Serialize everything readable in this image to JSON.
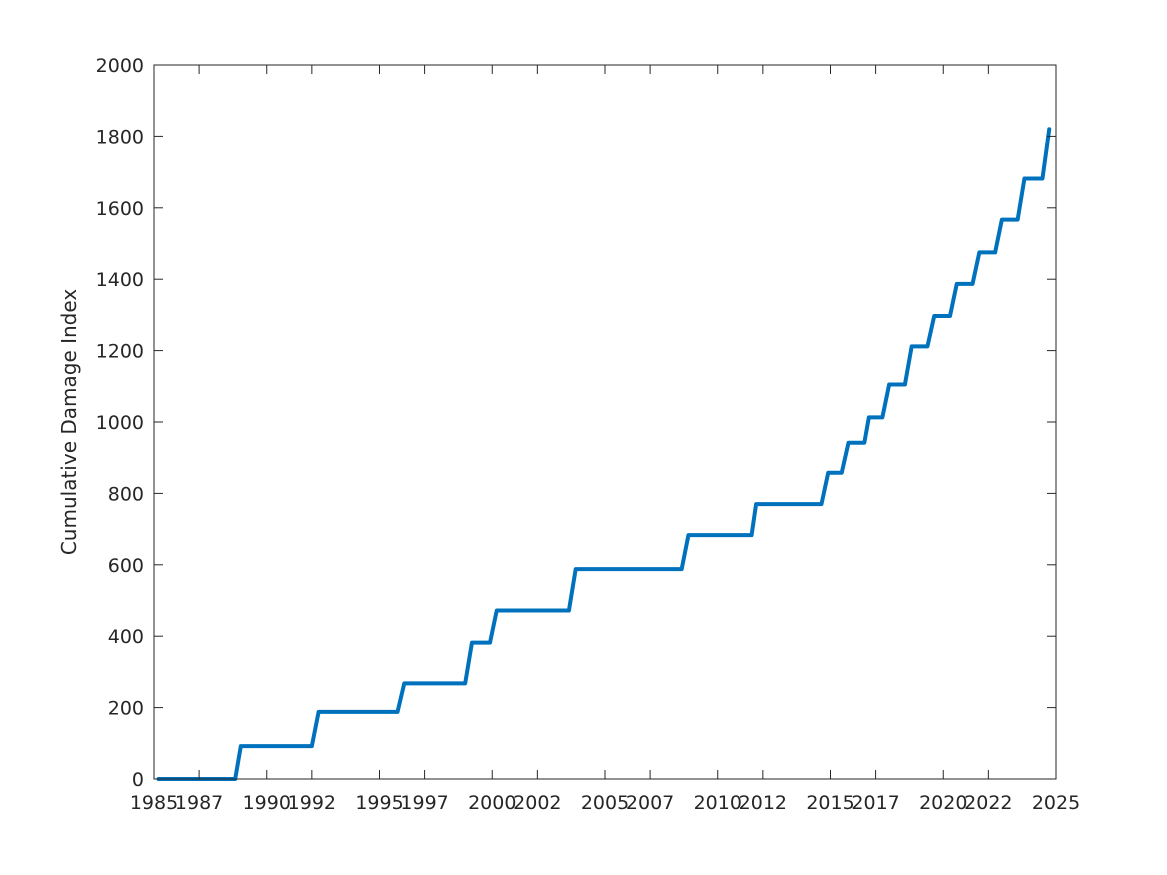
{
  "chart_data": {
    "type": "line",
    "title": "",
    "xlabel": "",
    "ylabel": "Cumulative Damage Index",
    "xlim": [
      1985,
      2025
    ],
    "ylim": [
      0,
      2000
    ],
    "grid": false,
    "legend": "none",
    "x_ticks": [
      1985,
      1987,
      1990,
      1992,
      1995,
      1997,
      2000,
      2002,
      2005,
      2007,
      2010,
      2012,
      2015,
      2017,
      2020,
      2022,
      2025
    ],
    "x_tick_labels": [
      "1985",
      "1987",
      "1990",
      "1992",
      "1995",
      "1997",
      "2000",
      "2002",
      "2005",
      "2007",
      "2010",
      "2012",
      "2015",
      "2017",
      "2020",
      "2022",
      "2025"
    ],
    "y_ticks": [
      0,
      200,
      400,
      600,
      800,
      1000,
      1200,
      1400,
      1600,
      1800,
      2000
    ],
    "y_tick_labels": [
      "0",
      "200",
      "400",
      "600",
      "800",
      "1000",
      "1200",
      "1400",
      "1600",
      "1800",
      "2000"
    ],
    "series": [
      {
        "color": "#0072BD",
        "points": [
          [
            1985.2,
            0
          ],
          [
            1988.6,
            0
          ],
          [
            1988.85,
            92
          ],
          [
            1992.0,
            92
          ],
          [
            1992.3,
            188
          ],
          [
            1995.8,
            188
          ],
          [
            1996.1,
            268
          ],
          [
            1998.8,
            268
          ],
          [
            1999.1,
            382
          ],
          [
            1999.9,
            382
          ],
          [
            2000.2,
            472
          ],
          [
            2003.4,
            472
          ],
          [
            2003.7,
            588
          ],
          [
            2008.4,
            588
          ],
          [
            2008.7,
            683
          ],
          [
            2011.5,
            683
          ],
          [
            2011.7,
            770
          ],
          [
            2014.6,
            770
          ],
          [
            2014.9,
            858
          ],
          [
            2015.5,
            858
          ],
          [
            2015.8,
            942
          ],
          [
            2016.5,
            942
          ],
          [
            2016.7,
            1013
          ],
          [
            2017.3,
            1013
          ],
          [
            2017.6,
            1105
          ],
          [
            2018.3,
            1105
          ],
          [
            2018.6,
            1212
          ],
          [
            2019.3,
            1212
          ],
          [
            2019.6,
            1297
          ],
          [
            2020.3,
            1297
          ],
          [
            2020.6,
            1387
          ],
          [
            2021.3,
            1387
          ],
          [
            2021.6,
            1475
          ],
          [
            2022.3,
            1475
          ],
          [
            2022.6,
            1567
          ],
          [
            2023.3,
            1567
          ],
          [
            2023.6,
            1682
          ],
          [
            2024.4,
            1682
          ],
          [
            2024.7,
            1820
          ]
        ]
      }
    ]
  }
}
